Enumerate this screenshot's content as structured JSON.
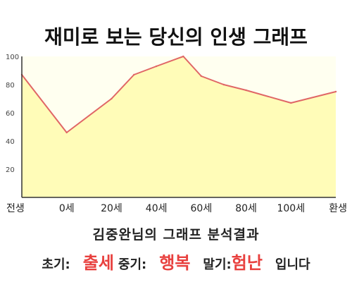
{
  "chart_data": {
    "type": "area",
    "title": "재미로 보는 당신의 인생 그래프",
    "xlabel": "",
    "ylabel": "",
    "categories": [
      "전생",
      "0세",
      "20세",
      "40세",
      "60세",
      "80세",
      "100세",
      "환생"
    ],
    "y_ticks": [
      20,
      40,
      60,
      80,
      100
    ],
    "ylim": [
      0,
      100
    ],
    "grid": false,
    "x": [
      0,
      1,
      2,
      2.5,
      3,
      3.6,
      4,
      4.5,
      5,
      6,
      7
    ],
    "values": [
      87,
      46,
      70,
      87,
      93,
      100,
      86,
      80,
      76,
      67,
      75
    ],
    "line_color": "#e06666",
    "fill_color": "#fffcb8",
    "plot_background": "#fffff0"
  },
  "result": {
    "title": "김중완님의 그래프 분석결과",
    "early_label": "초기:",
    "early_value": "출세",
    "middle_label": "중기:",
    "middle_value": "행복",
    "late_label": "말기:",
    "late_value": "험난",
    "ending": "입니다",
    "highlight_color": "#e8403e"
  }
}
